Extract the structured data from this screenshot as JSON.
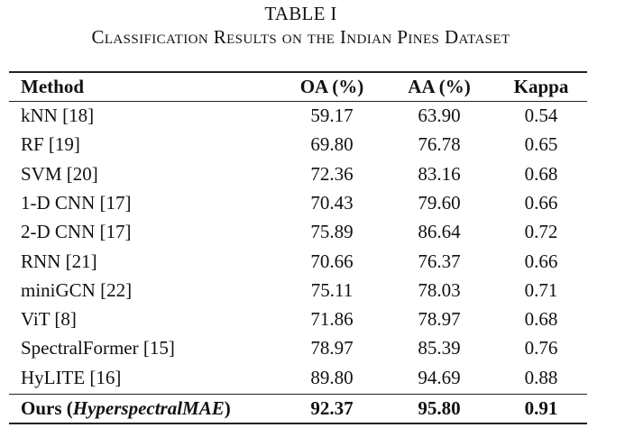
{
  "table": {
    "label": "TABLE I",
    "caption": "Classification Results on the Indian Pines Dataset",
    "headers": {
      "method": "Method",
      "oa": "OA (%)",
      "aa": "AA (%)",
      "kappa": "Kappa"
    },
    "rows": [
      {
        "method": "kNN [18]",
        "oa": "59.17",
        "aa": "63.90",
        "kappa": "0.54"
      },
      {
        "method": "RF [19]",
        "oa": "69.80",
        "aa": "76.78",
        "kappa": "0.65"
      },
      {
        "method": "SVM [20]",
        "oa": "72.36",
        "aa": "83.16",
        "kappa": "0.68"
      },
      {
        "method": "1-D CNN [17]",
        "oa": "70.43",
        "aa": "79.60",
        "kappa": "0.66"
      },
      {
        "method": "2-D CNN [17]",
        "oa": "75.89",
        "aa": "86.64",
        "kappa": "0.72"
      },
      {
        "method": "RNN [21]",
        "oa": "70.66",
        "aa": "76.37",
        "kappa": "0.66"
      },
      {
        "method": "miniGCN [22]",
        "oa": "75.11",
        "aa": "78.03",
        "kappa": "0.71"
      },
      {
        "method": "ViT [8]",
        "oa": "71.86",
        "aa": "78.97",
        "kappa": "0.68"
      },
      {
        "method": "SpectralFormer [15]",
        "oa": "78.97",
        "aa": "85.39",
        "kappa": "0.76"
      },
      {
        "method": "HyLITE [16]",
        "oa": "89.80",
        "aa": "94.69",
        "kappa": "0.88"
      }
    ],
    "ours": {
      "method_prefix": "Ours (",
      "method_name": "HyperspectralMAE",
      "method_suffix": ")",
      "oa": "92.37",
      "aa": "95.80",
      "kappa": "0.91"
    }
  }
}
